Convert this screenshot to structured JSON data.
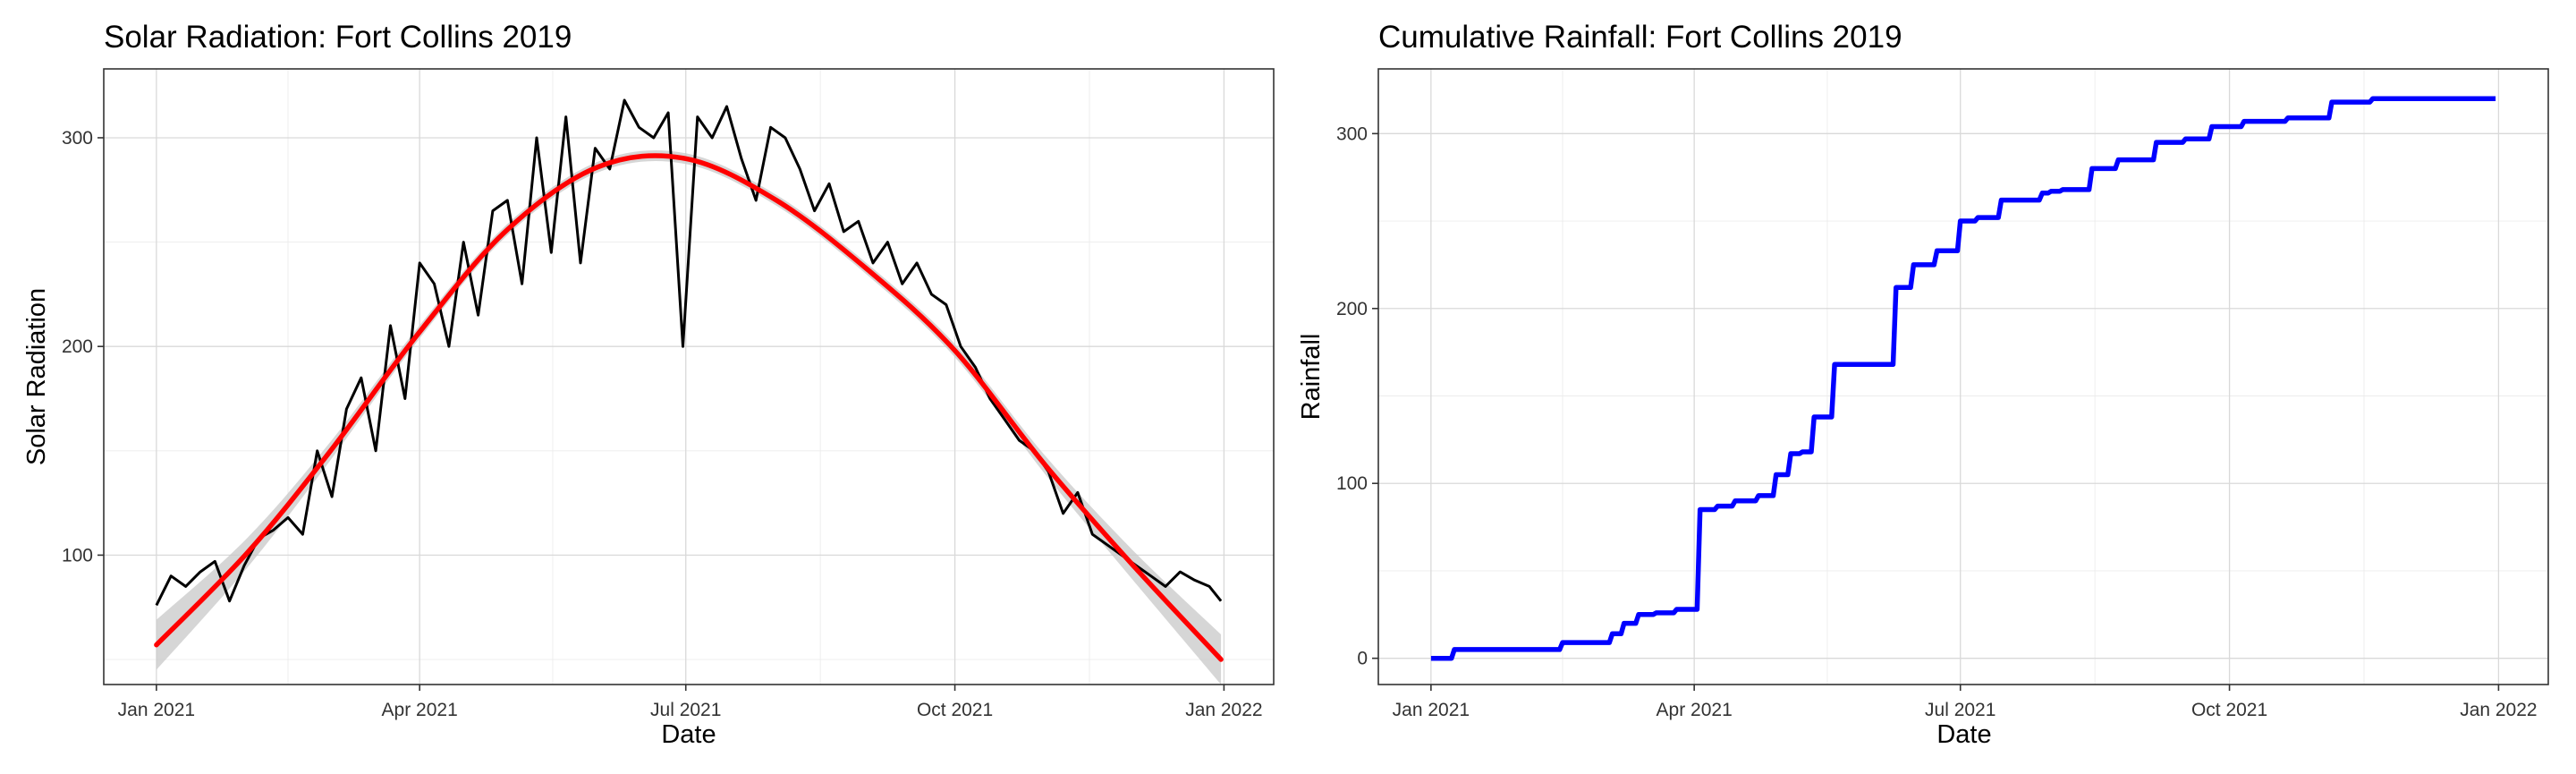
{
  "chart_data": [
    {
      "type": "line",
      "title": "Solar Radiation: Fort Collins 2019",
      "xlabel": "Date",
      "ylabel": "Solar Radiation",
      "x_axis_type": "date",
      "xlim": [
        "2021-01-01",
        "2021-12-31"
      ],
      "ylim": [
        38,
        333
      ],
      "x_ticks": [
        "2021-01-01",
        "2021-04-01",
        "2021-07-01",
        "2021-10-01",
        "2022-01-01"
      ],
      "x_tick_labels": [
        "Jan 2021",
        "Apr 2021",
        "Jul 2021",
        "Oct 2021",
        "Jan 2022"
      ],
      "y_ticks": [
        100,
        200,
        300
      ],
      "y_tick_labels": [
        "100",
        "200",
        "300"
      ],
      "grid": true,
      "colors": {
        "daily": "#000000",
        "smooth": "#ff0000",
        "band": "#c8c8c8"
      },
      "series": [
        {
          "role": "daily",
          "x": [
            "2021-01-01",
            "2021-01-06",
            "2021-01-11",
            "2021-01-16",
            "2021-01-21",
            "2021-01-26",
            "2021-01-31",
            "2021-02-05",
            "2021-02-10",
            "2021-02-15",
            "2021-02-20",
            "2021-02-25",
            "2021-03-02",
            "2021-03-07",
            "2021-03-12",
            "2021-03-17",
            "2021-03-22",
            "2021-03-27",
            "2021-04-01",
            "2021-04-06",
            "2021-04-11",
            "2021-04-16",
            "2021-04-21",
            "2021-04-26",
            "2021-05-01",
            "2021-05-06",
            "2021-05-11",
            "2021-05-16",
            "2021-05-21",
            "2021-05-26",
            "2021-05-31",
            "2021-06-05",
            "2021-06-10",
            "2021-06-15",
            "2021-06-20",
            "2021-06-25",
            "2021-06-30",
            "2021-07-05",
            "2021-07-10",
            "2021-07-15",
            "2021-07-20",
            "2021-07-25",
            "2021-07-30",
            "2021-08-04",
            "2021-08-09",
            "2021-08-14",
            "2021-08-19",
            "2021-08-24",
            "2021-08-29",
            "2021-09-03",
            "2021-09-08",
            "2021-09-13",
            "2021-09-18",
            "2021-09-23",
            "2021-09-28",
            "2021-10-03",
            "2021-10-08",
            "2021-10-13",
            "2021-10-18",
            "2021-10-23",
            "2021-10-28",
            "2021-11-02",
            "2021-11-07",
            "2021-11-12",
            "2021-11-17",
            "2021-11-22",
            "2021-11-27",
            "2021-12-02",
            "2021-12-07",
            "2021-12-12",
            "2021-12-17",
            "2021-12-22",
            "2021-12-27",
            "2021-12-31"
          ],
          "y": [
            76,
            90,
            85,
            92,
            97,
            78,
            95,
            108,
            112,
            118,
            110,
            150,
            128,
            170,
            185,
            150,
            210,
            175,
            240,
            230,
            200,
            250,
            215,
            265,
            270,
            230,
            300,
            245,
            310,
            240,
            295,
            285,
            318,
            305,
            300,
            312,
            200,
            310,
            300,
            315,
            290,
            270,
            305,
            300,
            285,
            265,
            278,
            255,
            260,
            240,
            250,
            230,
            240,
            225,
            220,
            200,
            190,
            175,
            165,
            155,
            150,
            140,
            120,
            130,
            110,
            105,
            100,
            95,
            90,
            85,
            92,
            88,
            85,
            78
          ]
        },
        {
          "role": "smooth",
          "x": [
            "2021-01-01",
            "2021-02-01",
            "2021-03-01",
            "2021-04-01",
            "2021-05-01",
            "2021-06-01",
            "2021-07-01",
            "2021-08-01",
            "2021-09-01",
            "2021-10-01",
            "2021-11-01",
            "2021-12-01",
            "2021-12-31"
          ],
          "y": [
            57,
            101,
            149,
            207,
            256,
            286,
            290,
            270,
            237,
            198,
            143,
            95,
            50
          ]
        }
      ]
    },
    {
      "type": "line",
      "title": "Cumulative Rainfall: Fort Collins 2019",
      "xlabel": "Date",
      "ylabel": "Rainfall",
      "x_axis_type": "date",
      "xlim": [
        "2021-01-01",
        "2021-12-31"
      ],
      "ylim": [
        -15,
        337
      ],
      "x_ticks": [
        "2021-01-01",
        "2021-04-01",
        "2021-07-01",
        "2021-10-01",
        "2022-01-01"
      ],
      "x_tick_labels": [
        "Jan 2021",
        "Apr 2021",
        "Jul 2021",
        "Oct 2021",
        "Jan 2022"
      ],
      "y_ticks": [
        0,
        100,
        200,
        300
      ],
      "y_tick_labels": [
        "0",
        "100",
        "200",
        "300"
      ],
      "grid": true,
      "colors": {
        "line": "#0000ff"
      },
      "series": [
        {
          "x": [
            "2021-01-01",
            "2021-01-08",
            "2021-01-09",
            "2021-01-23",
            "2021-01-24",
            "2021-02-14",
            "2021-02-15",
            "2021-02-18",
            "2021-02-19",
            "2021-02-23",
            "2021-02-24",
            "2021-03-03",
            "2021-03-04",
            "2021-03-07",
            "2021-03-08",
            "2021-03-12",
            "2021-03-13",
            "2021-03-18",
            "2021-03-19",
            "2021-03-25",
            "2021-03-26",
            "2021-04-02",
            "2021-04-03",
            "2021-04-08",
            "2021-04-09",
            "2021-04-14",
            "2021-04-15",
            "2021-04-18",
            "2021-04-19",
            "2021-04-22",
            "2021-04-23",
            "2021-04-28",
            "2021-04-29",
            "2021-05-03",
            "2021-05-04",
            "2021-05-07",
            "2021-05-08",
            "2021-05-11",
            "2021-05-12",
            "2021-05-18",
            "2021-05-19",
            "2021-06-08",
            "2021-06-09",
            "2021-06-14",
            "2021-06-15",
            "2021-06-22",
            "2021-06-23",
            "2021-06-30",
            "2021-07-01",
            "2021-07-06",
            "2021-07-07",
            "2021-07-14",
            "2021-07-15",
            "2021-07-28",
            "2021-07-29",
            "2021-07-31",
            "2021-08-01",
            "2021-08-04",
            "2021-08-05",
            "2021-08-14",
            "2021-08-15",
            "2021-08-23",
            "2021-08-24",
            "2021-09-05",
            "2021-09-06",
            "2021-09-15",
            "2021-09-16",
            "2021-09-24",
            "2021-09-25",
            "2021-10-05",
            "2021-10-06",
            "2021-10-20",
            "2021-10-21",
            "2021-11-04",
            "2021-11-05",
            "2021-11-18",
            "2021-11-19",
            "2021-12-31"
          ],
          "y": [
            0,
            0,
            5,
            5,
            5,
            5,
            9,
            9,
            9,
            9,
            9,
            9,
            14,
            14,
            20,
            20,
            25,
            25,
            26,
            26,
            28,
            28,
            85,
            85,
            87,
            87,
            90,
            90,
            90,
            90,
            93,
            93,
            105,
            105,
            117,
            117,
            118,
            118,
            138,
            138,
            168,
            168,
            212,
            212,
            225,
            225,
            233,
            233,
            250,
            250,
            252,
            252,
            262,
            262,
            266,
            266,
            267,
            267,
            268,
            268,
            280,
            280,
            285,
            285,
            295,
            295,
            297,
            297,
            304,
            304,
            307,
            307,
            309,
            309,
            318,
            318,
            320,
            320
          ]
        }
      ]
    }
  ]
}
